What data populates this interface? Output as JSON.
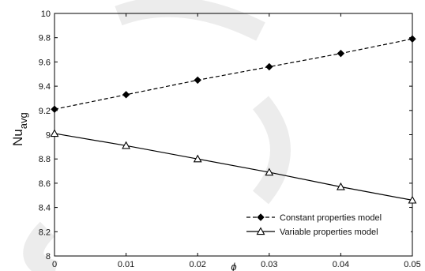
{
  "chart_data": {
    "type": "line",
    "xlabel": "ϕ",
    "ylabel": "Nu",
    "ylabel_sub": "avg",
    "xlim": [
      0,
      0.05
    ],
    "ylim": [
      8,
      10
    ],
    "x_ticks": [
      "0",
      "0.01",
      "0.02",
      "0.03",
      "0.04",
      "0.05"
    ],
    "y_ticks": [
      "8",
      "8.2",
      "8.4",
      "8.6",
      "8.8",
      "9",
      "9.2",
      "9.4",
      "9.6",
      "9.8",
      "10"
    ],
    "grid": false,
    "legend_position": "bottom-right",
    "x": [
      0,
      0.01,
      0.02,
      0.03,
      0.04,
      0.05
    ],
    "series": [
      {
        "name": "Constant properties model",
        "values": [
          9.21,
          9.33,
          9.45,
          9.56,
          9.67,
          9.79
        ],
        "line_style": "dashed",
        "marker": "diamond",
        "color": "#000000"
      },
      {
        "name": "Variable properties model",
        "values": [
          9.01,
          8.91,
          8.8,
          8.69,
          8.57,
          8.46
        ],
        "line_style": "solid",
        "marker": "triangle",
        "color": "#000000"
      }
    ]
  }
}
